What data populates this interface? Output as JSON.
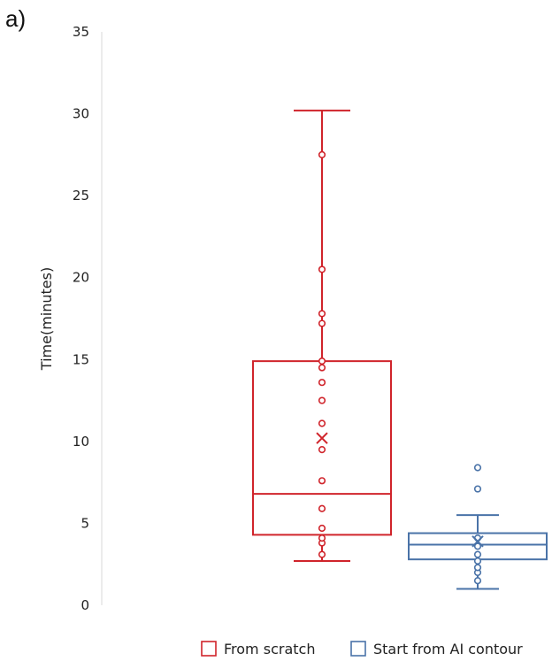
{
  "panel_label": "a)",
  "chart_data": {
    "type": "box",
    "ylabel": "Time(minutes)",
    "ylim": [
      0,
      35
    ],
    "yticks": [
      "0",
      "5",
      "10",
      "15",
      "20",
      "25",
      "30",
      "35"
    ],
    "grid": false,
    "legend_position": "bottom-right",
    "series": [
      {
        "name": "From scratch",
        "color": "#d0242b",
        "whisker_low": 2.7,
        "q1": 4.3,
        "median": 6.8,
        "q3": 14.9,
        "whisker_high": 30.2,
        "mean": 10.2,
        "points": [
          3.1,
          3.8,
          4.1,
          4.7,
          5.9,
          7.6,
          9.5,
          11.1,
          12.5,
          13.6,
          14.5,
          14.9,
          17.2,
          17.8,
          20.5,
          27.5
        ]
      },
      {
        "name": "Start from AI contour",
        "color": "#4a73a8",
        "whisker_low": 1.0,
        "q1": 2.8,
        "median": 3.7,
        "q3": 4.4,
        "whisker_high": 5.5,
        "mean": 3.9,
        "points": [
          1.5,
          2.0,
          2.3,
          2.7,
          3.1,
          3.6,
          4.1,
          7.1,
          8.4
        ]
      }
    ]
  }
}
